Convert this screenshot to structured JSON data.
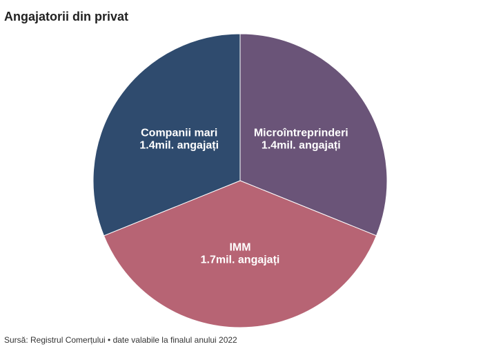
{
  "chart_data": {
    "type": "pie",
    "title": "Angajatorii din privat",
    "categories": [
      "Microîntreprinderi",
      "IMM",
      "Companii mari"
    ],
    "values": [
      1.4,
      1.7,
      1.4
    ],
    "value_labels": [
      "1.4mil. angajați",
      "1.7mil. angajați",
      "1.4mil. angajați"
    ],
    "colors": [
      "#6a5478",
      "#b76474",
      "#2f4b6e"
    ],
    "source": "Sursă: Registrul Comerțului • date valabile la finalul anului 2022"
  }
}
